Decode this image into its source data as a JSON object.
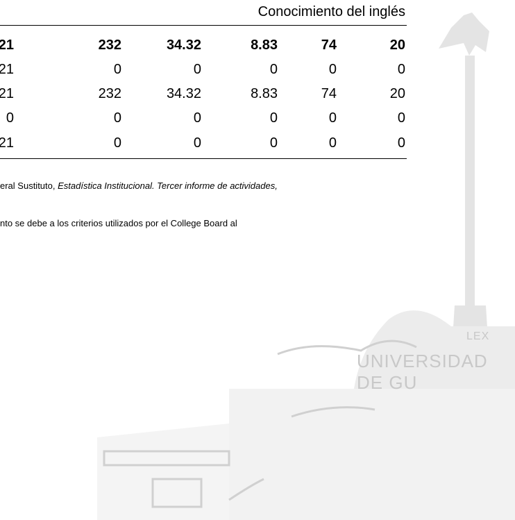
{
  "header": {
    "title": "Conocimiento del inglés"
  },
  "table": {
    "rows": [
      [
        "21",
        "232",
        "34.32",
        "8.83",
        "74",
        "20"
      ],
      [
        "21",
        "0",
        "0",
        "0",
        "0",
        "0"
      ],
      [
        "21",
        "232",
        "34.32",
        "8.83",
        "74",
        "20"
      ],
      [
        "0",
        "0",
        "0",
        "0",
        "0",
        "0"
      ],
      [
        "21",
        "0",
        "0",
        "0",
        "0",
        "0"
      ]
    ]
  },
  "notes": {
    "source_plain": "eral Sustituto, ",
    "source_italic": "Estadística Institucional. Tercer informe de actividades,",
    "note": "nto se debe a los criterios utilizados por el College Board al"
  },
  "watermark": {
    "name": "UNIVERSIDAD DE GU",
    "motto": "LEX"
  }
}
